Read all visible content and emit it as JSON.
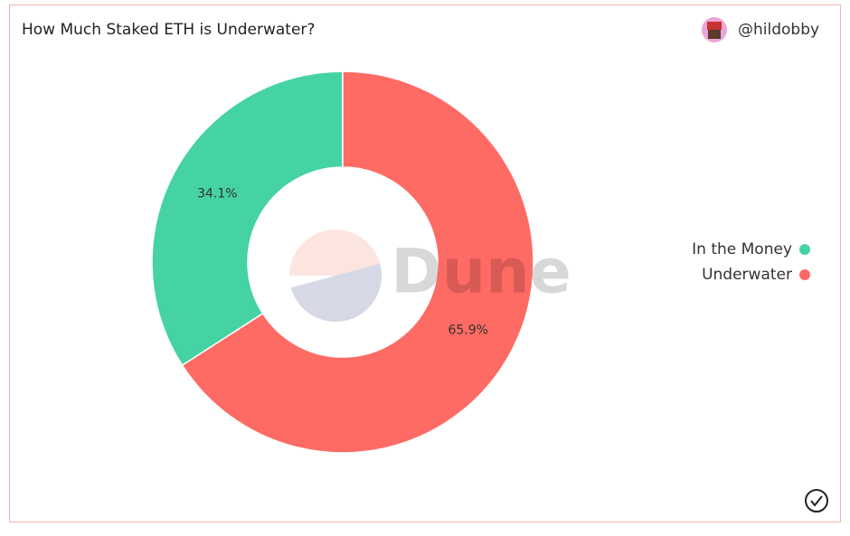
{
  "chart_data": {
    "type": "pie",
    "title": "How Much Staked ETH is Underwater?",
    "author": "@hildobby",
    "watermark": "Dune",
    "categories": [
      "In the Money",
      "Underwater"
    ],
    "values": [
      34.1,
      65.9
    ],
    "value_labels": [
      "34.1%",
      "65.9%"
    ],
    "colors": [
      "#45d3a3",
      "#fe6b64"
    ],
    "donut": true,
    "legend": "right"
  }
}
